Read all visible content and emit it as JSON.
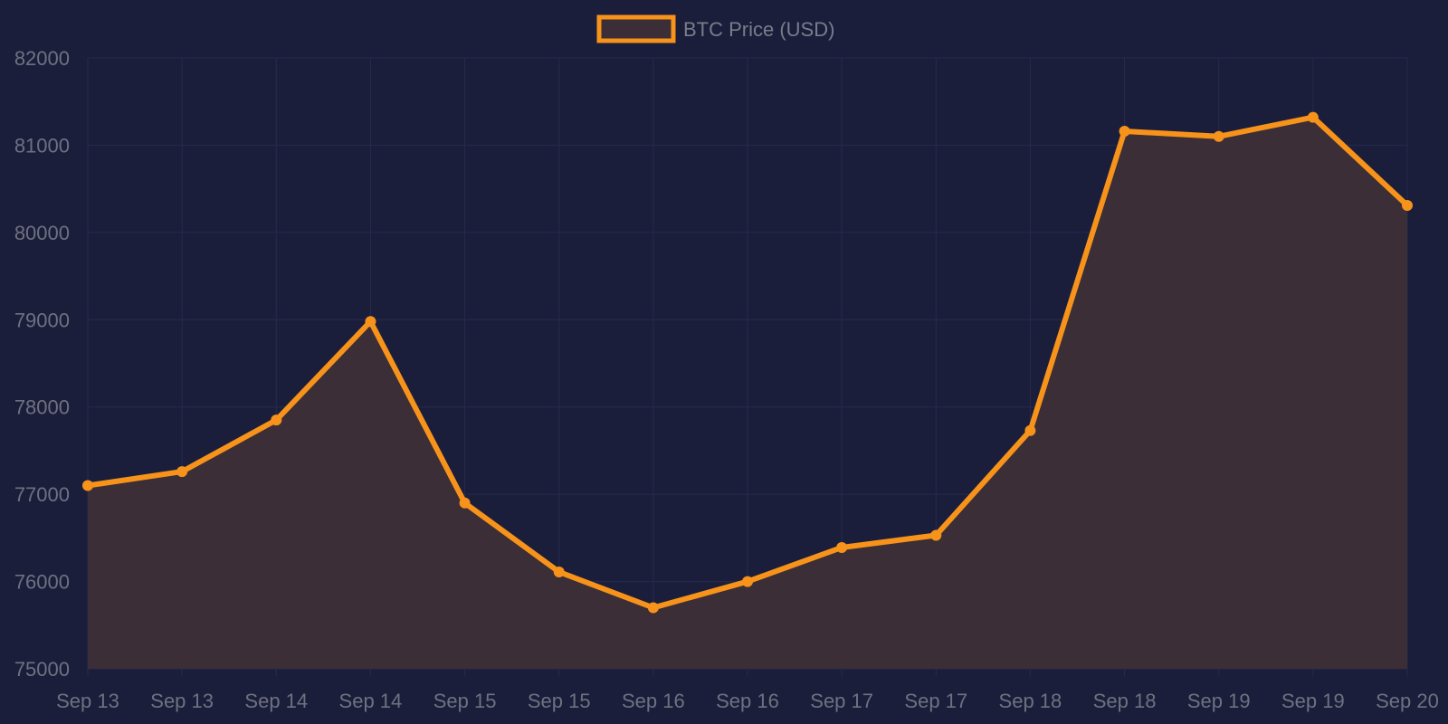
{
  "chart_data": {
    "type": "area",
    "series": [
      {
        "name": "BTC Price (USD)",
        "values": [
          77100,
          77260,
          77850,
          78980,
          76900,
          76110,
          75700,
          76000,
          76390,
          76530,
          77730,
          81160,
          81100,
          81320,
          80310
        ]
      }
    ],
    "categories": [
      "Sep 13",
      "Sep 13",
      "Sep 14",
      "Sep 14",
      "Sep 15",
      "Sep 15",
      "Sep 16",
      "Sep 16",
      "Sep 17",
      "Sep 17",
      "Sep 18",
      "Sep 18",
      "Sep 19",
      "Sep 19",
      "Sep 20"
    ],
    "ylim": [
      75000,
      82000
    ],
    "yticks": [
      75000,
      76000,
      77000,
      78000,
      79000,
      80000,
      81000,
      82000
    ],
    "grid": true,
    "legend_position": "top-center",
    "colors": {
      "background": "#1b1e3b",
      "line": "#f7931a",
      "fill": "#3b2e36",
      "grid": "#262a4d",
      "tick_text": "#6f7180"
    }
  }
}
